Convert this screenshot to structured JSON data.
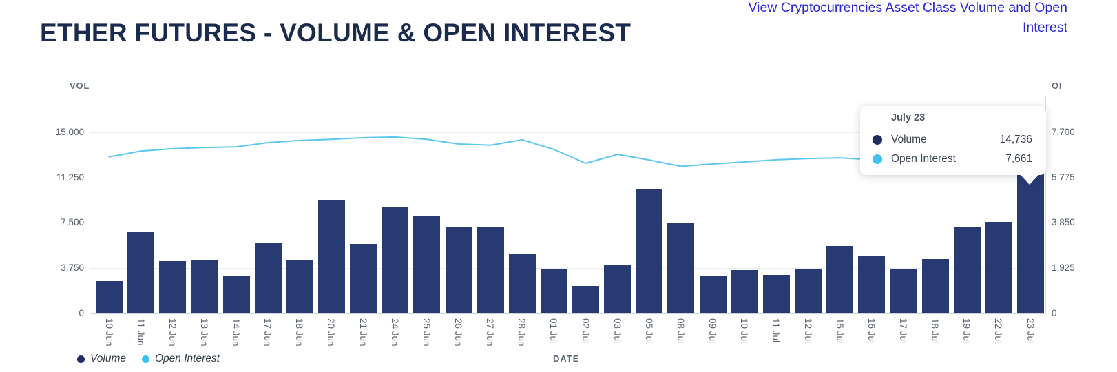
{
  "header": {
    "title": "ETHER FUTURES - VOLUME & OPEN INTEREST",
    "link": "View Cryptocurrencies Asset Class Volume and Open Interest"
  },
  "axes": {
    "left_label": "VOL",
    "right_label": "OI",
    "left_ticks": [
      "15,000",
      "11,250",
      "7,500",
      "3,750",
      "0"
    ],
    "right_ticks": [
      "7,700",
      "5,775",
      "3,850",
      "1,925",
      "0"
    ],
    "x_label": "DATE"
  },
  "legend": {
    "volume": "Volume",
    "open_interest": "Open Interest"
  },
  "tooltip": {
    "title": "July 23",
    "rows": [
      {
        "label": "Volume",
        "value": "14,736"
      },
      {
        "label": "Open Interest",
        "value": "7,661"
      }
    ]
  },
  "colors": {
    "bar": "#273a72",
    "line": "#5bc7f0",
    "volume_dot": "#1f2c5e",
    "open_interest_dot": "#3ec1f4",
    "title": "#1b2b4d",
    "link": "#2a2ad6"
  },
  "chart_data": {
    "type": "bar+line combo",
    "title": "ETHER FUTURES - VOLUME & OPEN INTEREST",
    "xlabel": "DATE",
    "grid": "horizontal gridlines on",
    "legend_position": "bottom-left",
    "categories": [
      "10 Jun",
      "11 Jun",
      "12 Jun",
      "13 Jun",
      "14 Jun",
      "17 Jun",
      "18 Jun",
      "20 Jun",
      "21 Jun",
      "24 Jun",
      "25 Jun",
      "26 Jun",
      "27 Jun",
      "28 Jun",
      "01 Jul",
      "02 Jul",
      "03 Jul",
      "05 Jul",
      "08 Jul",
      "09 Jul",
      "10 Jul",
      "11 Jul",
      "12 Jul",
      "15 Jul",
      "16 Jul",
      "17 Jul",
      "18 Jul",
      "19 Jul",
      "22 Jul",
      "23 Jul"
    ],
    "series": [
      {
        "name": "Volume",
        "type": "bar",
        "axis": "left",
        "values": [
          2650,
          6700,
          4300,
          4450,
          3050,
          5800,
          4350,
          9350,
          5750,
          8750,
          8050,
          7200,
          7200,
          4900,
          3650,
          2250,
          3950,
          10250,
          7500,
          3100,
          3550,
          3200,
          3700,
          5600,
          4800,
          3650,
          4500,
          7200,
          7600,
          14736
        ]
      },
      {
        "name": "Open Interest",
        "type": "line",
        "axis": "right",
        "values": [
          6650,
          6900,
          7000,
          7050,
          7080,
          7260,
          7350,
          7400,
          7470,
          7500,
          7400,
          7200,
          7150,
          7380,
          6970,
          6380,
          6760,
          6520,
          6250,
          6350,
          6440,
          6530,
          6580,
          6610,
          6530,
          6480,
          6550,
          6700,
          7100,
          7661
        ]
      }
    ],
    "left_axis": {
      "label": "VOL",
      "ticks": [
        0,
        3750,
        7500,
        11250,
        15000
      ],
      "max": 15000
    },
    "right_axis": {
      "label": "OI",
      "ticks": [
        0,
        1925,
        3850,
        5775,
        7700
      ],
      "max": 7700
    },
    "highlighted_point": {
      "category": "23 Jul",
      "volume": 14736,
      "open_interest": 7661
    }
  }
}
